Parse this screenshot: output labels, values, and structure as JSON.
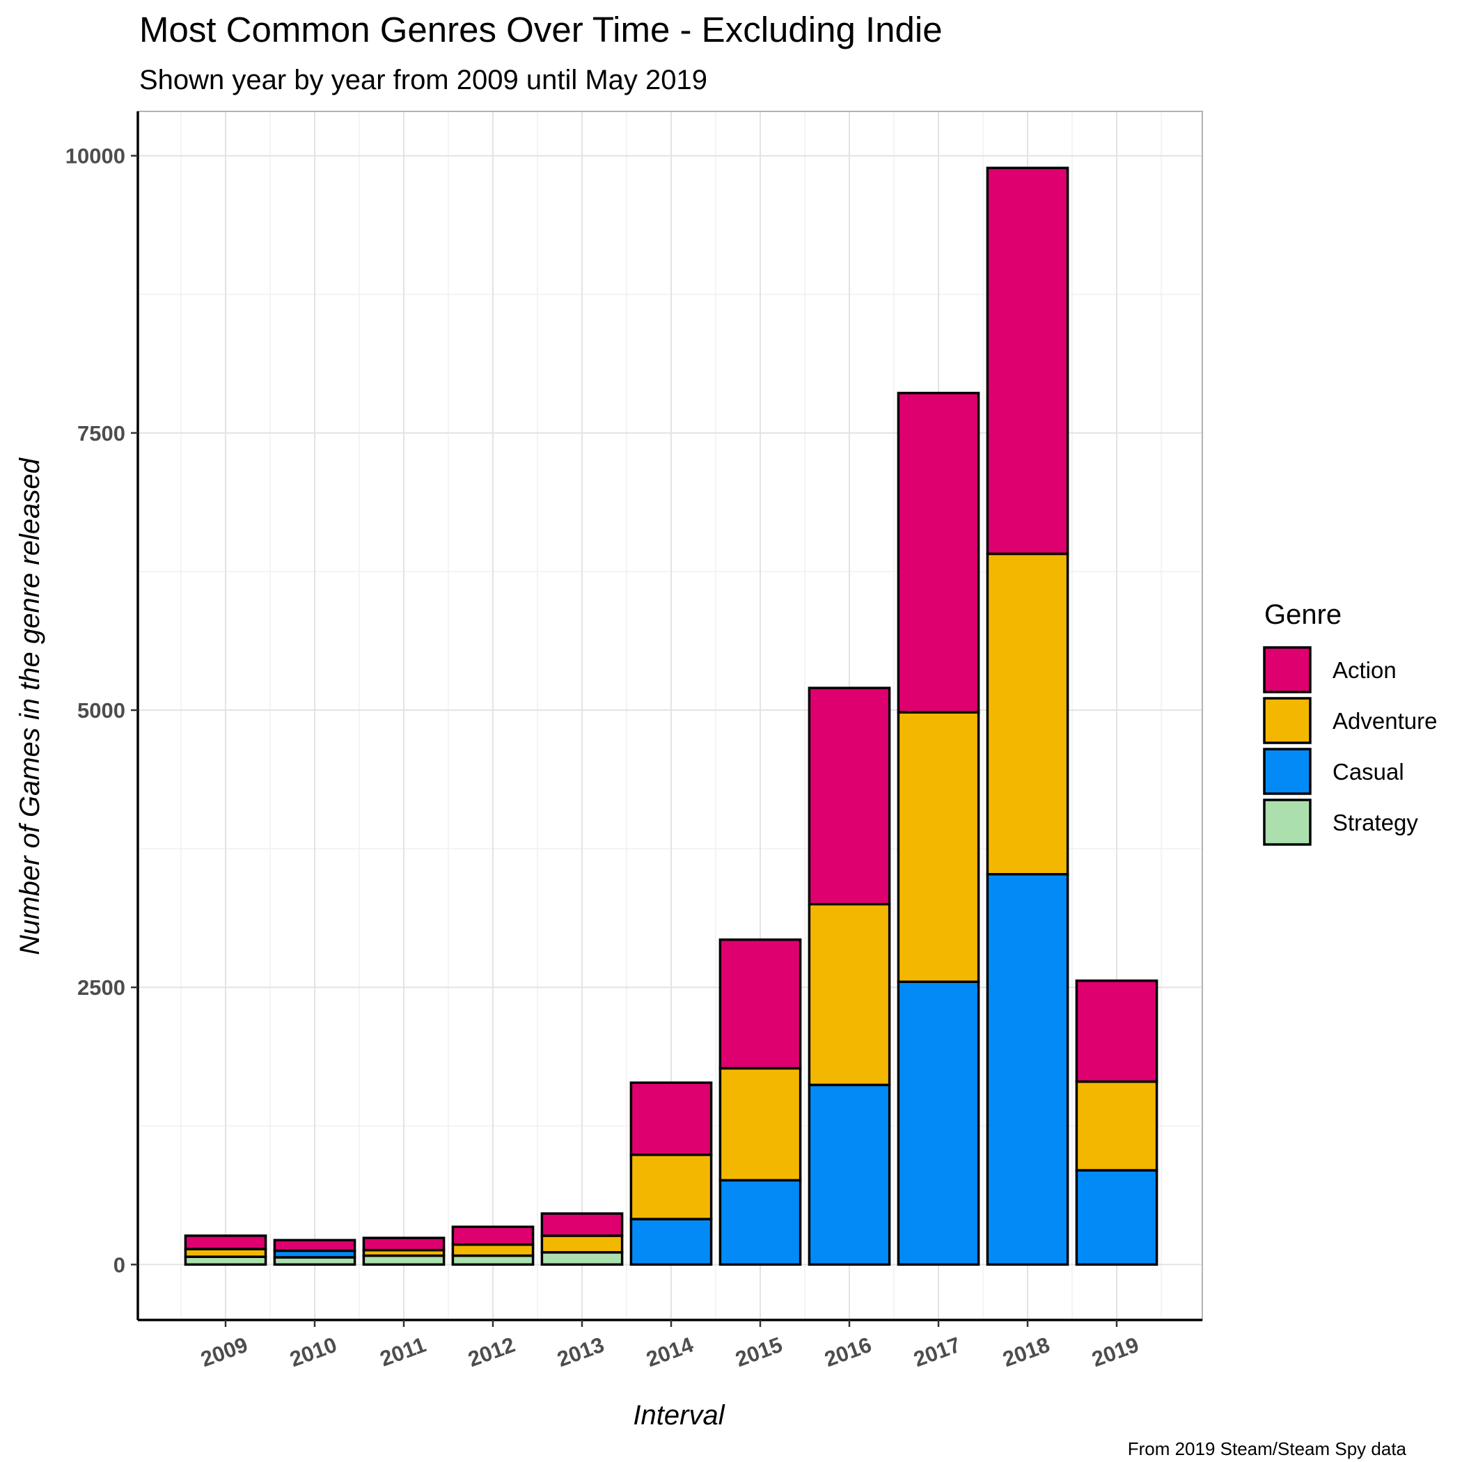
{
  "chart_data": {
    "type": "bar",
    "stacked": true,
    "title": "Most Common Genres Over Time - Excluding Indie",
    "subtitle": "Shown year by year from 2009 until May 2019",
    "xlabel": "Interval",
    "ylabel": "Number of Games in the genre released",
    "caption": "From 2019 Steam/Steam Spy data",
    "categories": [
      "2009",
      "2010",
      "2011",
      "2012",
      "2013",
      "2014",
      "2015",
      "2016",
      "2017",
      "2018",
      "2019"
    ],
    "y_ticks": [
      0,
      2500,
      5000,
      7500,
      10000
    ],
    "y_tick_labels": [
      "0",
      "2500",
      "5000",
      "7500",
      "10000"
    ],
    "ylim": [
      -500,
      10400
    ],
    "legend": {
      "title": "Genre",
      "position": "right"
    },
    "grid": true,
    "series": [
      {
        "name": "Strategy",
        "color": "#abe0ae",
        "values": [
          70,
          65,
          80,
          80,
          110,
          0,
          0,
          0,
          0,
          0,
          0
        ]
      },
      {
        "name": "Casual",
        "color": "#028bf7",
        "values": [
          0,
          60,
          0,
          0,
          0,
          410,
          760,
          1620,
          2550,
          3520,
          850
        ]
      },
      {
        "name": "Adventure",
        "color": "#f4b700",
        "values": [
          70,
          0,
          50,
          100,
          150,
          580,
          1010,
          1630,
          2430,
          2890,
          800
        ]
      },
      {
        "name": "Action",
        "color": "#de006f",
        "values": [
          120,
          95,
          110,
          160,
          200,
          650,
          1160,
          1950,
          2880,
          3480,
          910
        ]
      }
    ],
    "legend_order": [
      "Action",
      "Adventure",
      "Casual",
      "Strategy"
    ]
  }
}
